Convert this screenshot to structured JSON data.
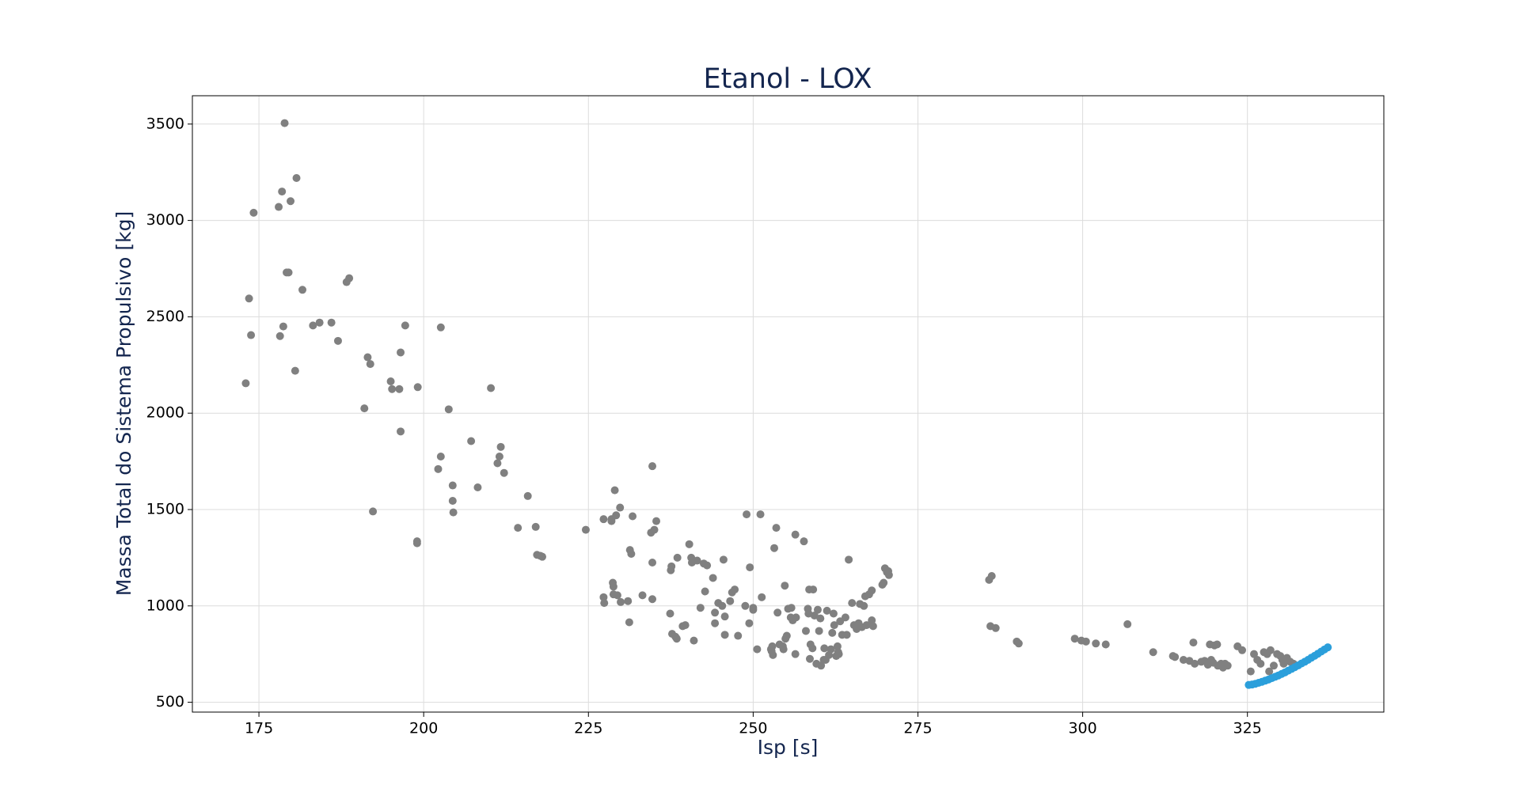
{
  "chart_data": {
    "type": "scatter",
    "title": "Etanol - LOX",
    "x_label": "Isp [s]",
    "y_label": "Massa Total do Sistema Propulsivo [kg]",
    "xlim": [
      164.9,
      345.7
    ],
    "ylim": [
      449,
      3647
    ],
    "xticks": [
      175,
      200,
      225,
      250,
      275,
      300,
      325
    ],
    "yticks": [
      500,
      1000,
      1500,
      2000,
      2500,
      3000,
      3500
    ],
    "grid": true,
    "series": [
      {
        "color": "#808080",
        "x": [
          173,
          173.5,
          173.8,
          174.2,
          178,
          178.2,
          178.5,
          178.7,
          178.9,
          179.2,
          179.5,
          179.8,
          180.5,
          180.7,
          181.6,
          183.2,
          184.2,
          186,
          187,
          188.3,
          188.7,
          191,
          191.5,
          191.9,
          192.3,
          195,
          195.2,
          196.3,
          196.5,
          196.5,
          197.2,
          199,
          199,
          199.1,
          202.2,
          202.6,
          202.6,
          203.8,
          204.4,
          204.4,
          204.5,
          207.2,
          208.2,
          210.2,
          211.2,
          211.5,
          211.7,
          212.2,
          214.3,
          215.8,
          217,
          217.2,
          217.7,
          218,
          224.6,
          227.3,
          227.3,
          227.4,
          228.5,
          228.5,
          228.7,
          228.8,
          228.8,
          229,
          229.2,
          229.4,
          229.8,
          229.9,
          231,
          231.2,
          231.3,
          231.5,
          231.7,
          233.2,
          234.5,
          234.7,
          234.7,
          234.7,
          235,
          235.3,
          237.4,
          237.5,
          237.6,
          237.7,
          238.2,
          238.4,
          238.5,
          239.3,
          239.7,
          240.3,
          240.6,
          240.7,
          241,
          241.5,
          242,
          242.5,
          242.7,
          243,
          243.9,
          244.2,
          244.2,
          244.7,
          245.3,
          245.5,
          245.7,
          245.7,
          246.5,
          246.8,
          247.2,
          247.7,
          248.8,
          249,
          249.4,
          249.5,
          250,
          250,
          250.6,
          251.1,
          251.3,
          252.7,
          252.8,
          252.9,
          253,
          253.2,
          253.5,
          253.7,
          254,
          254.5,
          254.6,
          254.8,
          254.9,
          255.1,
          255.3,
          255.7,
          255.8,
          256,
          256.4,
          256.4,
          256.5,
          257.7,
          258,
          258.3,
          258.4,
          258.5,
          258.6,
          258.7,
          259,
          259.1,
          259.3,
          259.6,
          259.8,
          260,
          260.2,
          260.3,
          260.7,
          260.8,
          261,
          261.2,
          261.5,
          261.8,
          262,
          262.2,
          262.3,
          262.6,
          262.8,
          262.9,
          263,
          263.2,
          263.5,
          264,
          264.2,
          264.5,
          265,
          265.3,
          265.7,
          266,
          266.2,
          266.5,
          266.8,
          267,
          267.2,
          267.6,
          268,
          268,
          268.2,
          269.6,
          269.8,
          270,
          270.3,
          270.5,
          270.6,
          285.8,
          286,
          286.2,
          286.8,
          290,
          290.3,
          298.8,
          299.8,
          300.5,
          302,
          303.5,
          306.8,
          310.7,
          313.7,
          314,
          315.3,
          316.2,
          316.8,
          317,
          318,
          318.5,
          319,
          319.3,
          319.5,
          319.8,
          320,
          320.4,
          320.5,
          321,
          321.3,
          321.6,
          322,
          323.5,
          324.2,
          325.5,
          326,
          326.5,
          327,
          327.5,
          328,
          328.5,
          328.3,
          329,
          329.5,
          330,
          330.3,
          330.5,
          331,
          331.5,
          332
        ],
        "y": [
          2155,
          2595,
          2405,
          3040,
          3070,
          2400,
          3150,
          2450,
          3505,
          2730,
          2730,
          3100,
          2220,
          3220,
          2640,
          2455,
          2470,
          2470,
          2375,
          2680,
          2700,
          2025,
          2290,
          2255,
          1490,
          2165,
          2125,
          2125,
          2315,
          1905,
          2455,
          1335,
          1325,
          2135,
          1710,
          1775,
          2445,
          2020,
          1625,
          1545,
          1485,
          1855,
          1615,
          2130,
          1740,
          1775,
          1825,
          1690,
          1405,
          1570,
          1410,
          1265,
          1260,
          1255,
          1395,
          1450,
          1045,
          1015,
          1450,
          1440,
          1120,
          1100,
          1060,
          1600,
          1470,
          1055,
          1510,
          1020,
          1025,
          915,
          1290,
          1270,
          1465,
          1055,
          1380,
          1725,
          1225,
          1035,
          1395,
          1440,
          960,
          1185,
          1205,
          855,
          840,
          830,
          1250,
          895,
          900,
          1320,
          1250,
          1225,
          820,
          1235,
          990,
          1220,
          1075,
          1210,
          1145,
          965,
          910,
          1015,
          1000,
          1240,
          945,
          850,
          1025,
          1070,
          1085,
          845,
          1000,
          1475,
          910,
          1200,
          990,
          980,
          775,
          1475,
          1045,
          775,
          765,
          790,
          745,
          1300,
          1405,
          965,
          800,
          790,
          775,
          1105,
          830,
          845,
          985,
          940,
          990,
          925,
          1370,
          750,
          940,
          1335,
          870,
          985,
          960,
          1085,
          725,
          800,
          780,
          1085,
          950,
          700,
          980,
          870,
          935,
          690,
          720,
          780,
          720,
          975,
          745,
          775,
          860,
          960,
          900,
          740,
          790,
          760,
          750,
          920,
          850,
          940,
          850,
          1240,
          1015,
          900,
          880,
          910,
          1010,
          890,
          1000,
          1050,
          900,
          1060,
          1080,
          925,
          895,
          1110,
          1120,
          1195,
          1175,
          1180,
          1160,
          1135,
          895,
          1155,
          885,
          815,
          805,
          830,
          820,
          815,
          805,
          800,
          905,
          760,
          740,
          735,
          720,
          715,
          810,
          700,
          710,
          715,
          695,
          800,
          720,
          705,
          795,
          800,
          690,
          700,
          680,
          700,
          690,
          790,
          770,
          660,
          750,
          720,
          700,
          760,
          750,
          770,
          660,
          690,
          750,
          740,
          720,
          700,
          730,
          710,
          700
        ]
      },
      {
        "color": "#2b9fdb",
        "x": [
          325.2,
          325.7,
          326.2,
          326.7,
          327.2,
          327.7,
          328.2,
          328.7,
          329.2,
          329.7,
          330.2,
          330.7,
          331.2,
          331.7,
          332.2,
          332.7,
          333.2,
          333.7,
          334.2,
          334.7,
          335.2,
          335.7,
          336.2,
          336.7,
          337.2
        ],
        "y": [
          590,
          592,
          596,
          601,
          606,
          612,
          618,
          625,
          632,
          639,
          647,
          655,
          664,
          673,
          682,
          691,
          701,
          710,
          720,
          731,
          741,
          752,
          763,
          774,
          785
        ]
      }
    ]
  }
}
